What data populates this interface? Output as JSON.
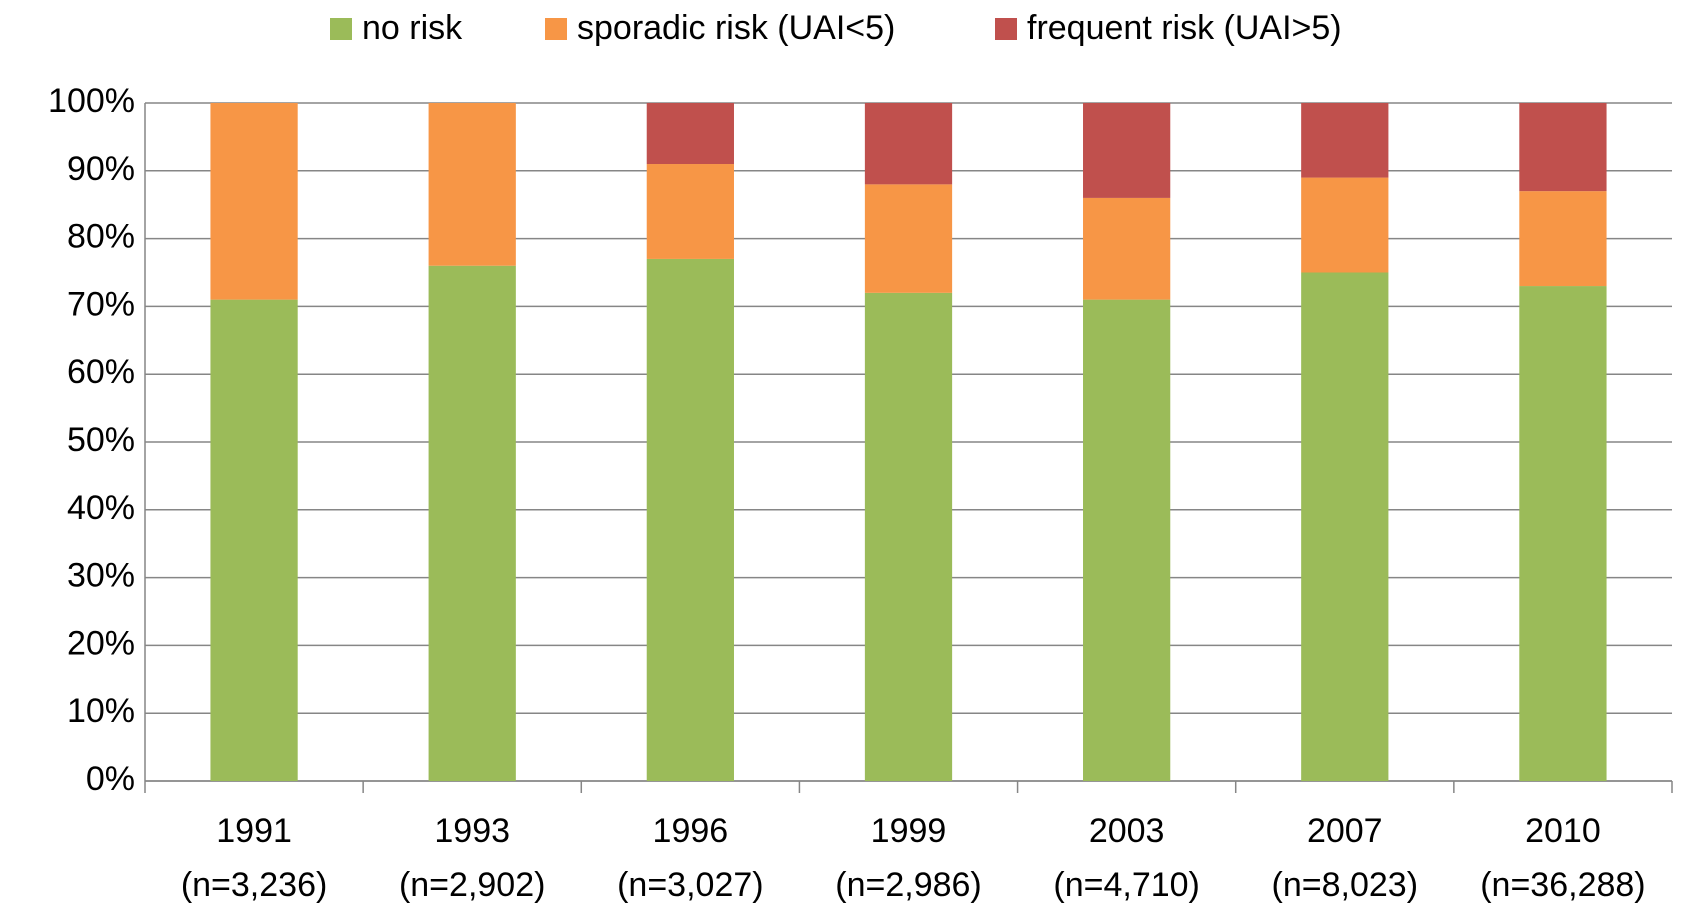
{
  "chart_data": {
    "type": "stacked_bar",
    "categories": [
      [
        "1991",
        "(n=3,236)"
      ],
      [
        "1993",
        "(n=2,902)"
      ],
      [
        "1996",
        "(n=3,027)"
      ],
      [
        "1999",
        "(n=2,986)"
      ],
      [
        "2003",
        "(n=4,710)"
      ],
      [
        "2007",
        "(n=8,023)"
      ],
      [
        "2010",
        "(n=36,288)"
      ]
    ],
    "series": [
      {
        "name": "no risk",
        "color": "#9bbb59",
        "values": [
          71,
          76,
          77,
          72,
          71,
          75,
          73
        ]
      },
      {
        "name": "sporadic risk (UAI<5)",
        "color": "#f79646",
        "values": [
          29,
          24,
          14,
          16,
          15,
          14,
          14
        ]
      },
      {
        "name": "frequent risk (UAI>5)",
        "color": "#c0504d",
        "values": [
          0,
          0,
          9,
          12,
          14,
          11,
          13
        ]
      }
    ],
    "ylim": [
      0,
      100
    ],
    "yticks": [
      {
        "value": 0,
        "label": "0%"
      },
      {
        "value": 10,
        "label": "10%"
      },
      {
        "value": 20,
        "label": "20%"
      },
      {
        "value": 30,
        "label": "30%"
      },
      {
        "value": 40,
        "label": "40%"
      },
      {
        "value": 50,
        "label": "50%"
      },
      {
        "value": 60,
        "label": "60%"
      },
      {
        "value": 70,
        "label": "70%"
      },
      {
        "value": 80,
        "label": "80%"
      },
      {
        "value": 90,
        "label": "90%"
      },
      {
        "value": 100,
        "label": "100%"
      }
    ],
    "grid": true,
    "legend": "top"
  }
}
